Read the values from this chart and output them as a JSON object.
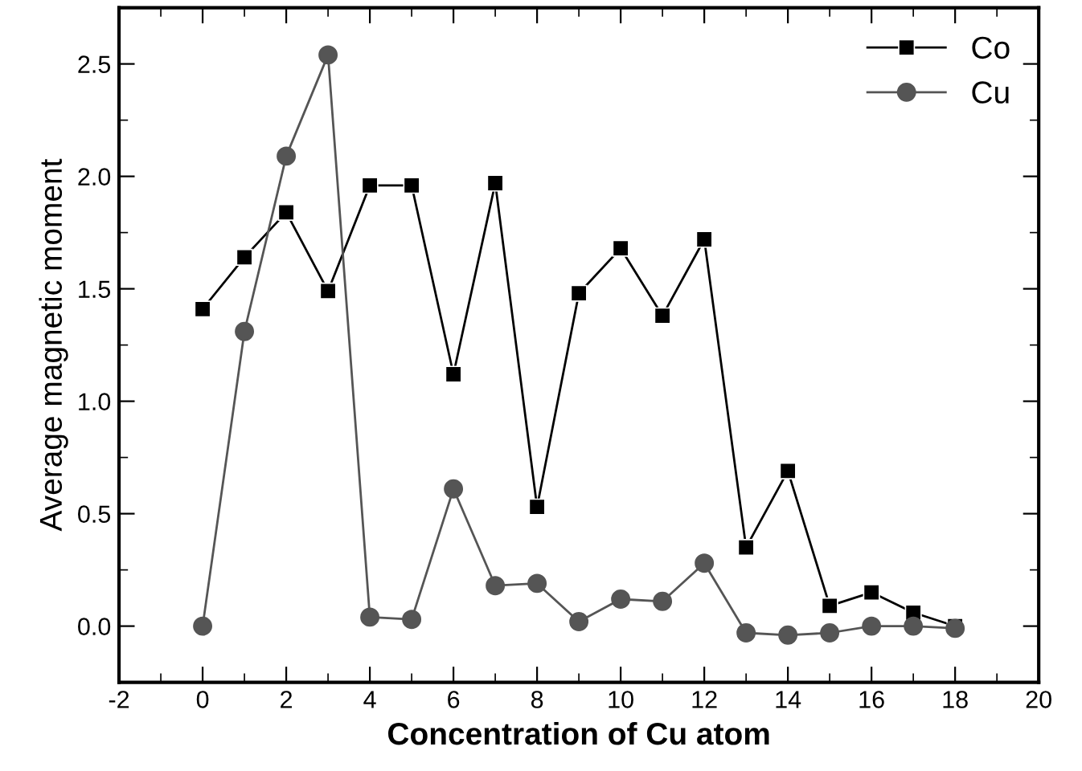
{
  "chart_data": {
    "type": "line",
    "xlabel": "Concentration of Cu atom",
    "ylabel": "Average magnetic moment",
    "x": [
      0,
      1,
      2,
      3,
      4,
      5,
      6,
      7,
      8,
      9,
      10,
      11,
      12,
      13,
      14,
      15,
      16,
      17,
      18
    ],
    "series": [
      {
        "name": "Co",
        "color": "#000000",
        "marker": "square",
        "values": [
          1.41,
          1.64,
          1.84,
          1.49,
          1.96,
          1.96,
          1.12,
          1.97,
          0.53,
          1.48,
          1.68,
          1.38,
          1.72,
          0.35,
          0.69,
          0.09,
          0.15,
          0.06,
          0.0
        ]
      },
      {
        "name": "Cu",
        "color": "#555555",
        "marker": "circle",
        "values": [
          0.0,
          1.31,
          2.09,
          2.54,
          0.04,
          0.03,
          0.61,
          0.18,
          0.19,
          0.02,
          0.12,
          0.11,
          0.28,
          -0.03,
          -0.04,
          -0.03,
          0.0,
          0.0,
          -0.01
        ]
      }
    ],
    "xlim": [
      -2,
      20
    ],
    "xticks": [
      -2,
      0,
      2,
      4,
      6,
      8,
      10,
      12,
      14,
      16,
      18,
      20
    ],
    "ylim": [
      -0.25,
      2.75
    ],
    "yticks": [
      {
        "value": 0,
        "label": "0.0"
      },
      {
        "value": 0.5,
        "label": "0.5"
      },
      {
        "value": 1,
        "label": "1.0"
      },
      {
        "value": 1.5,
        "label": "1.5"
      },
      {
        "value": 2,
        "label": "2.0"
      },
      {
        "value": 2.5,
        "label": "2.5"
      }
    ],
    "grid": false,
    "legend": "top right",
    "line_style": "solid"
  }
}
